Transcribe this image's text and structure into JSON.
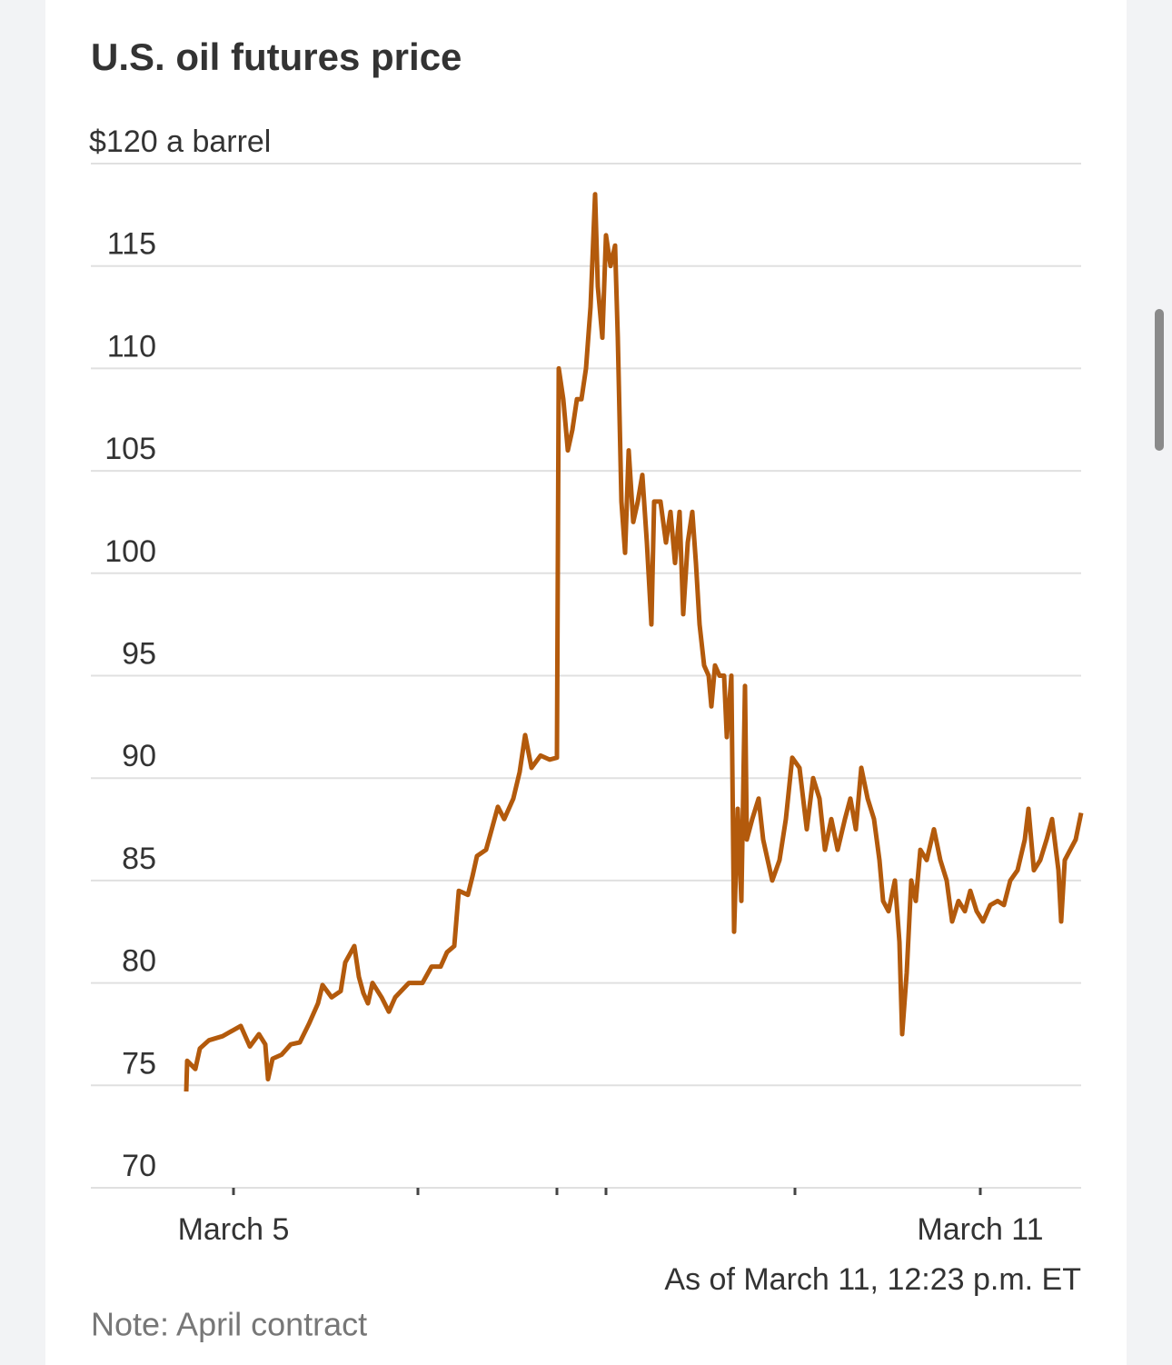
{
  "chart_data": {
    "type": "line",
    "title": "U.S. oil futures price",
    "note": "Note: April contract",
    "timestamp": "As of March 11, 12:23 p.m. ET",
    "color": "#b35a0c",
    "grid": true,
    "ylim": [
      70,
      120
    ],
    "yticks": [
      70,
      75,
      80,
      85,
      90,
      95,
      100,
      105,
      110,
      115,
      {
        "value": 120,
        "label": "$120 a barrel"
      }
    ],
    "xlim": [
      0,
      1090
    ],
    "xticks": [
      {
        "value": 157,
        "label": "March 5"
      },
      {
        "value": 360,
        "label": null
      },
      {
        "value": 513,
        "label": null
      },
      {
        "value": 567,
        "label": null
      },
      {
        "value": 775,
        "label": null
      },
      {
        "value": 979,
        "label": "March 11"
      }
    ],
    "x": [
      105,
      106,
      115,
      120,
      130,
      145,
      165,
      175,
      185,
      192,
      195,
      200,
      210,
      220,
      230,
      240,
      250,
      255,
      265,
      275,
      280,
      290,
      295,
      300,
      305,
      310,
      320,
      328,
      335,
      350,
      365,
      375,
      385,
      392,
      400,
      405,
      415,
      420,
      425,
      435,
      440,
      448,
      455,
      465,
      472,
      478,
      485,
      495,
      505,
      513,
      515,
      520,
      525,
      530,
      535,
      540,
      545,
      550,
      555,
      558,
      563,
      567,
      572,
      577,
      580,
      584,
      588,
      592,
      597,
      602,
      607,
      612,
      617,
      620,
      627,
      633,
      638,
      643,
      648,
      652,
      657,
      662,
      666,
      670,
      675,
      680,
      683,
      687,
      692,
      697,
      700,
      705,
      708,
      712,
      716,
      720,
      722,
      728,
      735,
      740,
      745,
      750,
      758,
      765,
      772,
      780,
      788,
      795,
      802,
      808,
      815,
      822,
      830,
      836,
      842,
      848,
      855,
      862,
      868,
      872,
      878,
      885,
      890,
      893,
      898,
      903,
      908,
      913,
      920,
      928,
      935,
      942,
      948,
      955,
      962,
      968,
      975,
      982,
      990,
      998,
      1005,
      1012,
      1020,
      1028,
      1032,
      1038,
      1045,
      1052,
      1058,
      1065,
      1068,
      1072,
      1078,
      1084,
      1090
    ],
    "values": [
      74.7,
      76.2,
      75.8,
      76.8,
      77.2,
      77.4,
      77.9,
      76.9,
      77.5,
      77.0,
      75.3,
      76.3,
      76.5,
      77.0,
      77.1,
      78.0,
      79.0,
      79.9,
      79.3,
      79.6,
      81.0,
      81.8,
      80.3,
      79.5,
      79.0,
      80.0,
      79.3,
      78.6,
      79.3,
      80.0,
      80.0,
      80.8,
      80.8,
      81.5,
      81.8,
      84.5,
      84.3,
      85.2,
      86.2,
      86.5,
      87.3,
      88.6,
      88.0,
      89.0,
      90.3,
      92.1,
      90.5,
      91.1,
      90.9,
      91.0,
      110.0,
      108.5,
      106.0,
      107.0,
      108.5,
      108.5,
      110.0,
      113.0,
      118.5,
      114.0,
      111.5,
      116.5,
      115.0,
      116.0,
      111.5,
      103.5,
      101.0,
      106.0,
      102.5,
      103.5,
      104.8,
      101.5,
      97.5,
      103.5,
      103.5,
      101.5,
      103.0,
      100.5,
      103.0,
      98.0,
      101.5,
      103.0,
      100.5,
      97.5,
      95.5,
      95.0,
      93.5,
      95.5,
      95.0,
      95.0,
      92.0,
      95.0,
      82.5,
      88.5,
      84.0,
      94.5,
      87.0,
      88.0,
      89.0,
      87.0,
      86.0,
      85.0,
      86.0,
      88.0,
      91.0,
      90.5,
      87.5,
      90.0,
      89.0,
      86.5,
      88.0,
      86.5,
      88.0,
      89.0,
      87.5,
      90.5,
      89.0,
      88.0,
      86.0,
      84.0,
      83.5,
      85.0,
      82.0,
      77.5,
      80.5,
      85.0,
      84.0,
      86.5,
      86.0,
      87.5,
      86.0,
      85.0,
      83.0,
      84.0,
      83.5,
      84.5,
      83.5,
      83.0,
      83.8,
      84.0,
      83.8,
      85.0,
      85.5,
      87.0,
      88.5,
      85.5,
      86.0,
      87.0,
      88.0,
      85.5,
      83.0,
      86.0,
      86.5,
      87.0,
      88.3
    ]
  }
}
